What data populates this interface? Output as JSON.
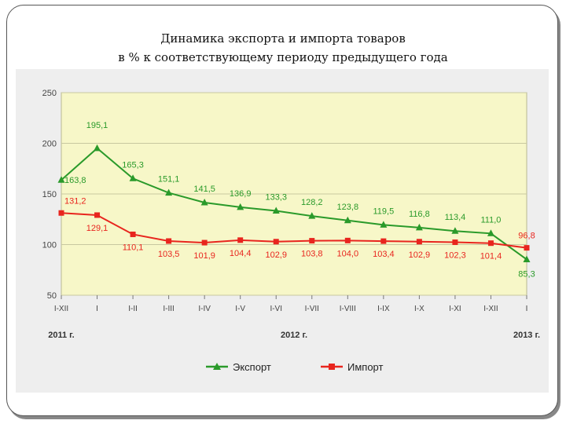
{
  "title": {
    "line1": "Динамика экспорта и импорта товаров",
    "line2": "в % к соответствующему периоду предыдущего года"
  },
  "legend": {
    "export_label": "Экспорт",
    "import_label": "Импорт"
  },
  "colors": {
    "export": "#2a9a2a",
    "import": "#e8251e",
    "plot_bg": "#f7f7c8",
    "outer_bg": "#eeeeee",
    "grid": "#c8c8a0"
  },
  "chart_data": {
    "type": "line",
    "categories": [
      "I-XII",
      "I",
      "I-II",
      "I-III",
      "I-IV",
      "I-V",
      "I-VI",
      "I-VII",
      "I-VIII",
      "I-IX",
      "I-X",
      "I-XI",
      "I-XII",
      "I"
    ],
    "year_labels": [
      {
        "label": "2011 г.",
        "at_index": 0
      },
      {
        "label": "2012 г.",
        "at_index": 6.5
      },
      {
        "label": "2013 г.",
        "at_index": 13
      }
    ],
    "ylim": [
      50,
      250
    ],
    "yticks": [
      50,
      100,
      150,
      200,
      250
    ],
    "ytick_labels": [
      "50",
      "100",
      "150",
      "200",
      "250"
    ],
    "grid": true,
    "legend_position": "bottom",
    "series": [
      {
        "name": "Экспорт",
        "color": "#2a9a2a",
        "marker": "triangle",
        "values": [
          163.8,
          195.1,
          165.3,
          151.1,
          141.5,
          136.9,
          133.3,
          128.2,
          123.8,
          119.5,
          116.8,
          113.4,
          111.0,
          85.3
        ],
        "labels": [
          "163,8",
          "195,1",
          "165,3",
          "151,1",
          "141,5",
          "136,9",
          "133,3",
          "128,2",
          "123,8",
          "119,5",
          "116,8",
          "113,4",
          "111,0",
          "85,3"
        ]
      },
      {
        "name": "Импорт",
        "color": "#e8251e",
        "marker": "square",
        "values": [
          131.2,
          129.1,
          110.1,
          103.5,
          101.9,
          104.4,
          102.9,
          103.8,
          104.0,
          103.4,
          102.9,
          102.3,
          101.4,
          96.8
        ],
        "labels": [
          "131,2",
          "129,1",
          "110,1",
          "103,5",
          "101,9",
          "104,4",
          "102,9",
          "103,8",
          "104,0",
          "103,4",
          "102,9",
          "102,3",
          "101,4",
          "96,8"
        ]
      }
    ]
  }
}
